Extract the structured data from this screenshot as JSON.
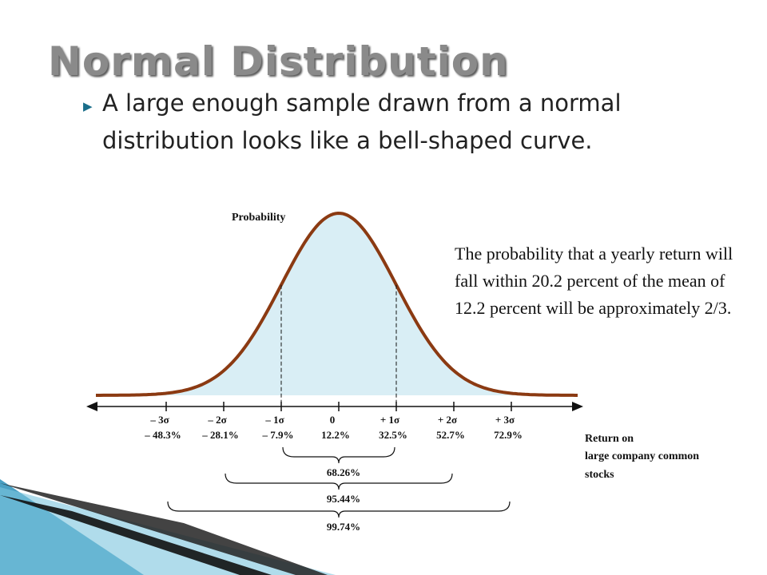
{
  "slide": {
    "title": "Normal Distribution",
    "bullet": "A large enough sample drawn from a normal distribution looks like a bell-shaped curve.",
    "bullet_icon": "triangle-right-icon",
    "note": "The probability that a yearly return will fall within 20.2 percent of the mean of 12.2 percent will be approximately 2/3."
  },
  "chart_data": {
    "type": "area",
    "ylabel": "Probability",
    "xlabel_lines": [
      "Return on",
      "large company common",
      "stocks"
    ],
    "ticks": [
      {
        "sigma": "– 3σ",
        "value": "– 48.3%"
      },
      {
        "sigma": "– 2σ",
        "value": "– 28.1%"
      },
      {
        "sigma": "– 1σ",
        "value": "– 7.9%"
      },
      {
        "sigma": "0",
        "value": "12.2%"
      },
      {
        "sigma": "+ 1σ",
        "value": "32.5%"
      },
      {
        "sigma": "+ 2σ",
        "value": "52.7%"
      },
      {
        "sigma": "+ 3σ",
        "value": "72.9%"
      }
    ],
    "ranges": [
      {
        "label": "68.26%",
        "sigma": 1
      },
      {
        "label": "95.44%",
        "sigma": 2
      },
      {
        "label": "99.74%",
        "sigma": 3
      }
    ],
    "curve_color": "#8b3a12",
    "fill_color": "#d9eef5"
  }
}
